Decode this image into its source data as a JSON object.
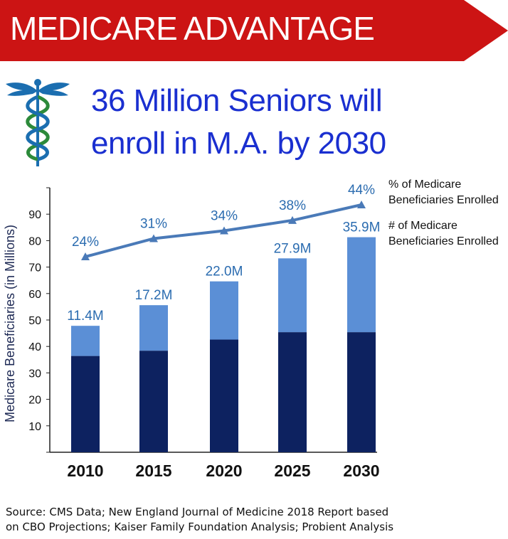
{
  "banner": {
    "title": "MEDICARE ADVANTAGE",
    "color": "#cc1414"
  },
  "headline": {
    "line1": "36 Million Seniors will",
    "line2": "enroll in M.A. by 2030",
    "color": "#1a2fd0"
  },
  "icon": "caduceus-icon",
  "chart_data": {
    "type": "bar",
    "categories": [
      "2010",
      "2015",
      "2020",
      "2025",
      "2030"
    ],
    "ylabel": "Medicare Beneficiaries (in Millions)",
    "ylim": [
      0,
      100
    ],
    "yticks": [
      10,
      20,
      30,
      40,
      50,
      60,
      70,
      80,
      90
    ],
    "grid": false,
    "series": [
      {
        "kind": "bar",
        "values": [
          36.4,
          38.4,
          42.6,
          45.4,
          45.4
        ],
        "color": "#0d2260"
      },
      {
        "kind": "bar",
        "name": "# of Medicare Beneficiaries Enrolled",
        "values": [
          11.4,
          17.2,
          22.0,
          27.9,
          35.9
        ],
        "labels": [
          "11.4M",
          "17.2M",
          "22.0M",
          "27.9M",
          "35.9M"
        ],
        "color": "#5b8fd6"
      },
      {
        "kind": "line",
        "name": "% of Medicare Beneficiaries Enrolled",
        "values": [
          24,
          31,
          34,
          38,
          44
        ],
        "labels": [
          "24%",
          "31%",
          "34%",
          "38%",
          "44%"
        ],
        "color": "#4a7ab8"
      }
    ],
    "legend": [
      "% of Medicare Beneficiaries Enrolled",
      "# of Medicare Beneficiaries Enrolled"
    ]
  },
  "source": {
    "line1": "Source: CMS Data; New England Journal of Medicine 2018 Report based",
    "line2": "on CBO Projections; Kaiser Family Foundation Analysis; Probient Analysis"
  }
}
